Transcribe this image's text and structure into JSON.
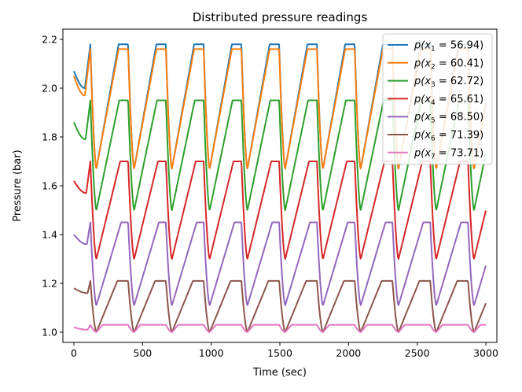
{
  "chart_data": {
    "type": "line",
    "title": "Distributed pressure readings",
    "xlabel": "Time (sec)",
    "ylabel": "Pressure (bar)",
    "xlim": [
      -80,
      3080
    ],
    "ylim": [
      0.958,
      2.242
    ],
    "x_ticks": [
      0,
      500,
      1000,
      1500,
      2000,
      2500,
      3000
    ],
    "y_ticks": [
      1.0,
      1.2,
      1.4,
      1.6,
      1.8,
      2.0,
      2.2
    ],
    "legend_position": "top-right",
    "grid": false,
    "period_sec": 275,
    "series": [
      {
        "name": "p(x1 = 56.94)",
        "sub": "1",
        "value": "56.94",
        "color": "#1f77b4",
        "start": 2.07,
        "dip": 2.0,
        "max": 2.18,
        "min": 1.67,
        "rise_frac": 0.7,
        "onset": 80
      },
      {
        "name": "p(x2 = 60.41)",
        "sub": "2",
        "value": "60.41",
        "color": "#ff7f0e",
        "start": 2.05,
        "dip": 1.97,
        "max": 2.16,
        "min": 1.67,
        "rise_frac": 0.7,
        "onset": 80
      },
      {
        "name": "p(x3 = 62.72)",
        "sub": "3",
        "value": "62.72",
        "color": "#2ca02c",
        "start": 1.86,
        "dip": 1.79,
        "max": 1.95,
        "min": 1.5,
        "rise_frac": 0.72,
        "onset": 85
      },
      {
        "name": "p(x4 = 65.61)",
        "sub": "4",
        "value": "65.61",
        "color": "#d62728",
        "start": 1.62,
        "dip": 1.57,
        "max": 1.7,
        "min": 1.3,
        "rise_frac": 0.75,
        "onset": 90
      },
      {
        "name": "p(x5 = 68.50)",
        "sub": "5",
        "value": "68.50",
        "color": "#9467bd",
        "start": 1.4,
        "dip": 1.36,
        "max": 1.45,
        "min": 1.11,
        "rise_frac": 0.78,
        "onset": 95
      },
      {
        "name": "p(x6 = 71.39)",
        "sub": "6",
        "value": "71.39",
        "color": "#8c564b",
        "start": 1.18,
        "dip": 1.16,
        "max": 1.21,
        "min": 1.0,
        "rise_frac": 0.66,
        "onset": 100
      },
      {
        "name": "p(x7 = 73.71)",
        "sub": "7",
        "value": "73.71",
        "color": "#e377c2",
        "start": 1.02,
        "dip": 1.01,
        "max": 1.03,
        "min": 1.0,
        "rise_frac": 0.2,
        "onset": 100
      }
    ]
  }
}
